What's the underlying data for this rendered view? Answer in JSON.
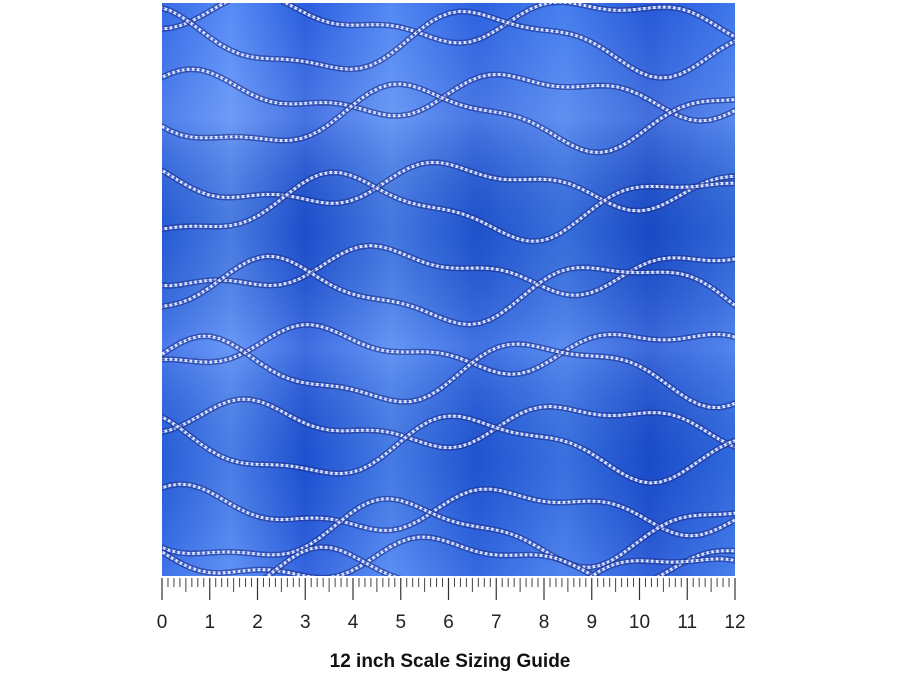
{
  "ruler": {
    "ticks": [
      0,
      1,
      2,
      3,
      4,
      5,
      6,
      7,
      8,
      9,
      10,
      11,
      12
    ]
  },
  "caption": "12 inch Scale Sizing Guide"
}
